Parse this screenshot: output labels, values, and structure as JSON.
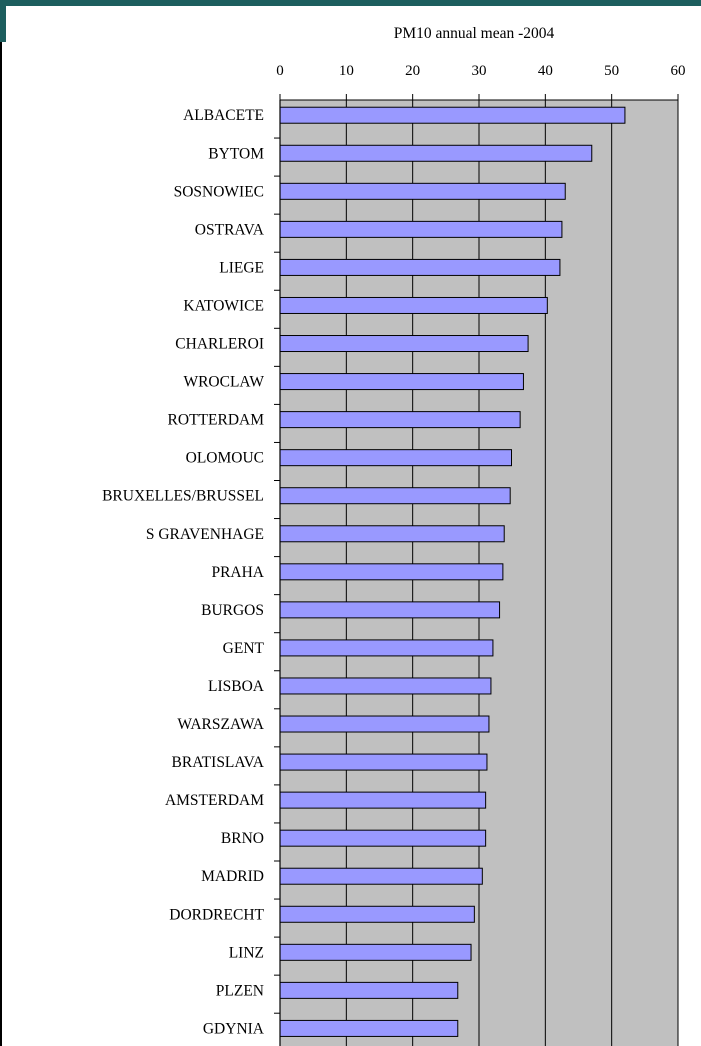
{
  "chart_data": {
    "type": "bar",
    "orientation": "horizontal",
    "title": "PM10 annual mean -2004",
    "x_axis_position": "top",
    "xlim": [
      0,
      60
    ],
    "x_ticks": [
      "0",
      "10",
      "20",
      "30",
      "40",
      "50",
      "60"
    ],
    "grid": true,
    "plot_background": "#c0c0c0",
    "bar_color": "#9999ff",
    "bar_border_color": "#000000",
    "categories": [
      "ALBACETE",
      "BYTOM",
      "SOSNOWIEC",
      "OSTRAVA",
      "LIEGE",
      "KATOWICE",
      "CHARLEROI",
      "WROCLAW",
      "ROTTERDAM",
      "OLOMOUC",
      "BRUXELLES/BRUSSEL",
      "S GRAVENHAGE",
      "PRAHA",
      "BURGOS",
      "GENT",
      "LISBOA",
      "WARSZAWA",
      "BRATISLAVA",
      "AMSTERDAM",
      "BRNO",
      "MADRID",
      "DORDRECHT",
      "LINZ",
      "PLZEN",
      "GDYNIA"
    ],
    "values": [
      52,
      47,
      43,
      42.5,
      42.2,
      40.3,
      37.4,
      36.7,
      36.2,
      34.9,
      34.7,
      33.8,
      33.6,
      33.1,
      32.1,
      31.8,
      31.5,
      31.2,
      31.0,
      31.0,
      30.5,
      29.3,
      28.8,
      26.8,
      26.8
    ]
  },
  "colors": {
    "frame_accent": "#1d5e5e"
  }
}
